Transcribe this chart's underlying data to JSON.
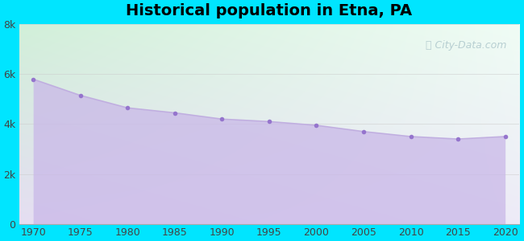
{
  "title": "Historical population in Etna, PA",
  "years": [
    1970,
    1975,
    1980,
    1985,
    1990,
    1995,
    2000,
    2005,
    2010,
    2015,
    2020
  ],
  "population": [
    5800,
    5150,
    4650,
    4450,
    4200,
    4100,
    3950,
    3700,
    3500,
    3400,
    3500
  ],
  "ylim": [
    0,
    8000
  ],
  "yticks": [
    0,
    2000,
    4000,
    6000,
    8000
  ],
  "ytick_labels": [
    "0",
    "2k",
    "4k",
    "6k",
    "8k"
  ],
  "line_color": "#c0aee0",
  "fill_color": "#c9b8e8",
  "fill_alpha": 0.75,
  "marker_color": "#9575cd",
  "marker_size": 4,
  "background_outer": "#00e5ff",
  "bg_top_left": "#d4edda",
  "bg_top_right": "#f0fff4",
  "bg_bottom": "#e8e4f0",
  "title_fontsize": 14,
  "title_fontweight": "bold",
  "axis_label_fontsize": 9,
  "grid_color": "#cccccc",
  "grid_alpha": 0.6,
  "watermark_text": "City-Data.com",
  "watermark_color": "#aec8cc",
  "watermark_fontsize": 9
}
